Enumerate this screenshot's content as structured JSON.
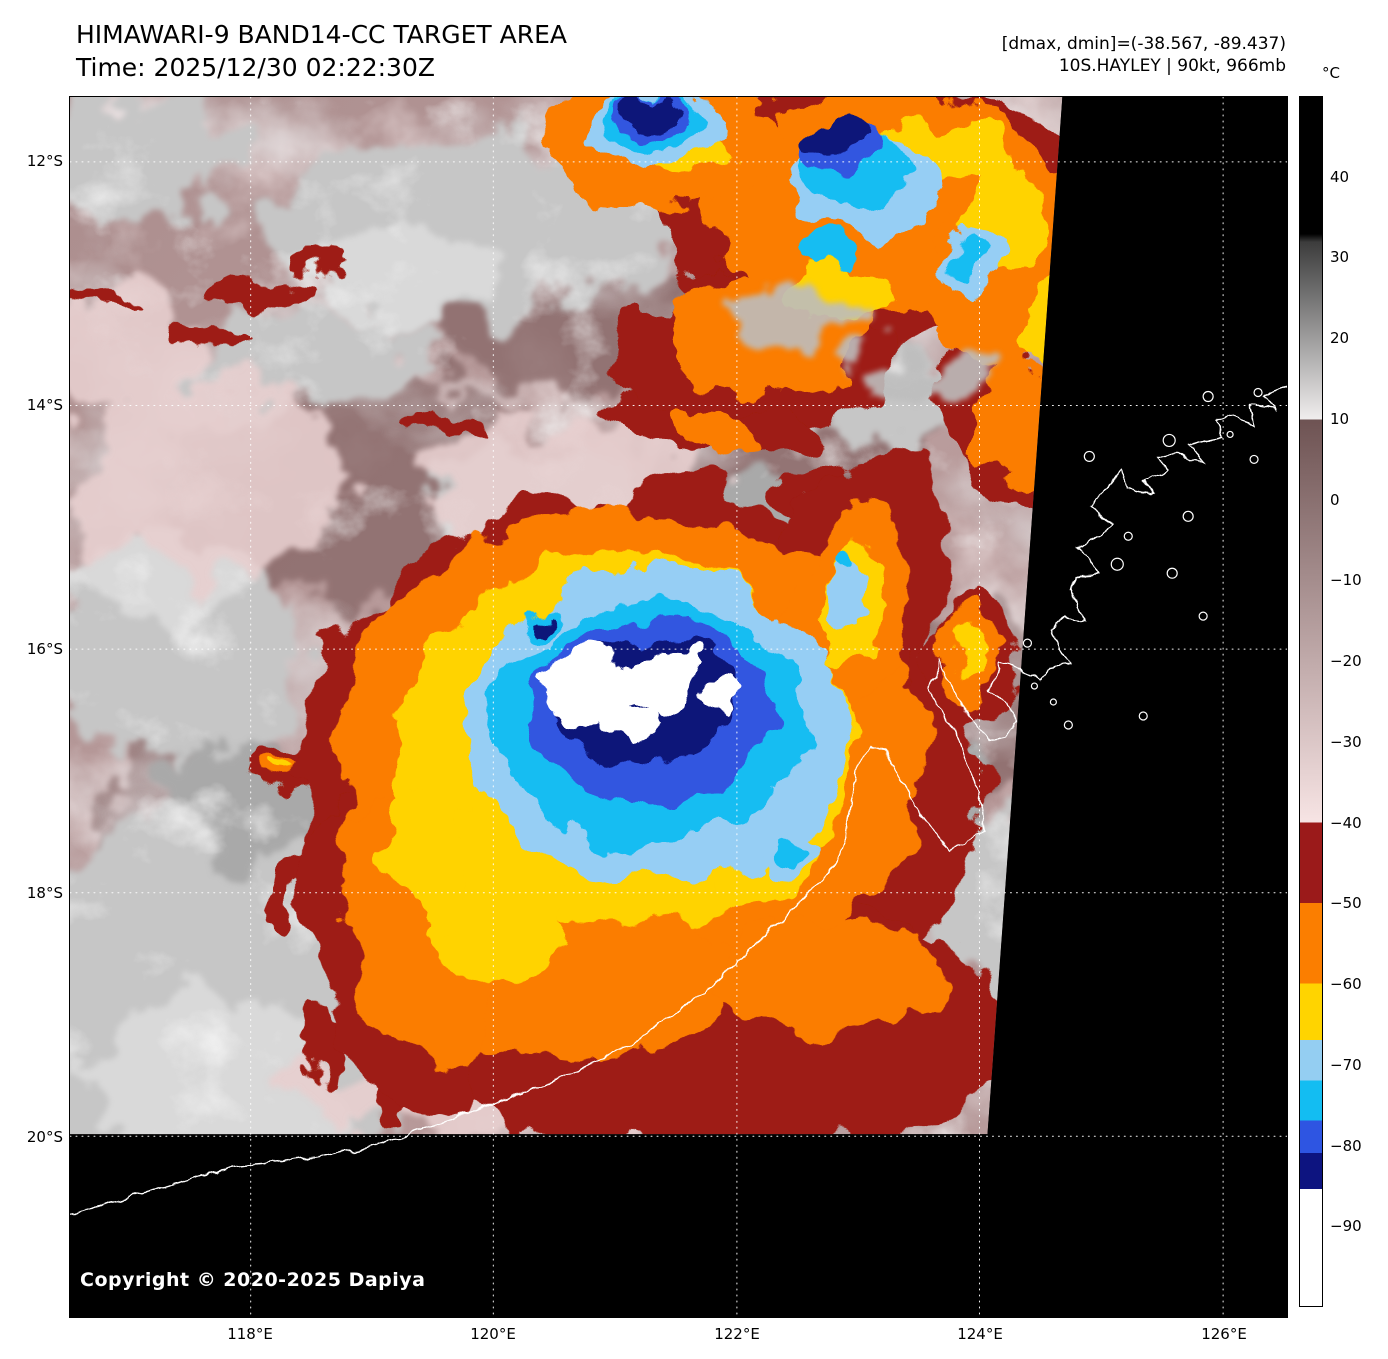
{
  "header": {
    "title": "HIMAWARI-9 BAND14-CC TARGET AREA",
    "time": "Time: 2025/12/30 02:22:30Z",
    "range_info": "[dmax, dmin]=(-38.567, -89.437)",
    "storm_info": "10S.HAYLEY | 90kt, 966mb"
  },
  "axes": {
    "lat_labels": [
      "12°S",
      "14°S",
      "16°S",
      "18°S",
      "20°S"
    ],
    "lon_labels": [
      "118°E",
      "120°E",
      "122°E",
      "124°E",
      "126°E"
    ]
  },
  "colorbar": {
    "unit_label": "°C",
    "max": 50,
    "min": -100,
    "ticks": [
      40,
      30,
      20,
      10,
      0,
      -10,
      -20,
      -30,
      -40,
      -50,
      -60,
      -70,
      -80,
      -90
    ],
    "stops": [
      {
        "t": 50,
        "color": "#000000"
      },
      {
        "t": 33,
        "color": "#000000"
      },
      {
        "t": 32,
        "color": "#3c3c3c"
      },
      {
        "t": 10,
        "color": "#f0eeee"
      },
      {
        "t": 10,
        "color": "#6e5353"
      },
      {
        "t": -40,
        "color": "#f7e4e4"
      },
      {
        "t": -40,
        "color": "#9b1a1a"
      },
      {
        "t": -50,
        "color": "#9b1a1a"
      },
      {
        "t": -50,
        "color": "#fb7e00"
      },
      {
        "t": -60,
        "color": "#fb7e00"
      },
      {
        "t": -60,
        "color": "#ffd400"
      },
      {
        "t": -67,
        "color": "#ffd400"
      },
      {
        "t": -67,
        "color": "#94cef2"
      },
      {
        "t": -72,
        "color": "#94cef2"
      },
      {
        "t": -72,
        "color": "#13bdf2"
      },
      {
        "t": -77,
        "color": "#13bdf2"
      },
      {
        "t": -77,
        "color": "#2e55e2"
      },
      {
        "t": -81,
        "color": "#2e55e2"
      },
      {
        "t": -81,
        "color": "#0d1480"
      },
      {
        "t": -85.5,
        "color": "#0d1480"
      },
      {
        "t": -85.5,
        "color": "#ffffff"
      },
      {
        "t": -100,
        "color": "#ffffff"
      }
    ]
  },
  "footer": {
    "copyright": "Copyright © 2020-2025 Dapiya"
  }
}
